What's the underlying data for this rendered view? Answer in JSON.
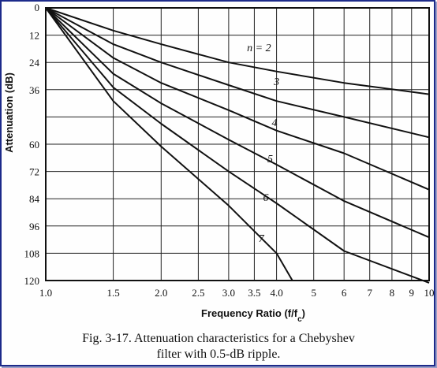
{
  "chart_data": {
    "type": "line",
    "xlabel": "Frequency Ratio (f/f",
    "xlabel_sub": "c",
    "xlabel_suffix": ")",
    "ylabel": "Attenuation (dB)",
    "x_scale": "log",
    "xlim": [
      1.0,
      10
    ],
    "ylim": [
      0,
      120
    ],
    "y_inverted": true,
    "grid": true,
    "x_ticks": [
      {
        "value": 1.0,
        "label": "1.0"
      },
      {
        "value": 1.5,
        "label": "1.5"
      },
      {
        "value": 2.0,
        "label": "2.0"
      },
      {
        "value": 2.5,
        "label": "2.5"
      },
      {
        "value": 3.0,
        "label": "3.0"
      },
      {
        "value": 3.5,
        "label": "3.5"
      },
      {
        "value": 4.0,
        "label": "4.0"
      },
      {
        "value": 5,
        "label": "5"
      },
      {
        "value": 6,
        "label": "6"
      },
      {
        "value": 7,
        "label": "7"
      },
      {
        "value": 8,
        "label": "8"
      },
      {
        "value": 9,
        "label": "9"
      },
      {
        "value": 10,
        "label": "10"
      }
    ],
    "y_ticks": [
      {
        "value": 0,
        "label": "0"
      },
      {
        "value": 12,
        "label": "12"
      },
      {
        "value": 24,
        "label": "24"
      },
      {
        "value": 36,
        "label": "36"
      },
      {
        "value": 60,
        "label": "60"
      },
      {
        "value": 72,
        "label": "72"
      },
      {
        "value": 84,
        "label": "84"
      },
      {
        "value": 96,
        "label": "96"
      },
      {
        "value": 108,
        "label": "108"
      },
      {
        "value": 120,
        "label": "120"
      }
    ],
    "y_gridlines": [
      0,
      12,
      24,
      36,
      48,
      60,
      72,
      84,
      96,
      108,
      120
    ],
    "series": [
      {
        "label": "n = 2",
        "x": [
          1.0,
          1.5,
          2.0,
          3.0,
          4.0,
          6.0,
          10
        ],
        "y": [
          0,
          10,
          16,
          24,
          28,
          33,
          38
        ],
        "label_at": [
          3.6,
          19
        ]
      },
      {
        "label": "3",
        "x": [
          1.0,
          1.5,
          2.0,
          3.0,
          4.0,
          6.0,
          10
        ],
        "y": [
          0,
          16,
          24,
          34,
          41,
          48,
          57
        ],
        "label_at": [
          4.0,
          34
        ]
      },
      {
        "label": "4",
        "x": [
          1.0,
          1.5,
          2.0,
          3.0,
          4.0,
          6.0,
          10
        ],
        "y": [
          0,
          22,
          33,
          45,
          54,
          64,
          80
        ],
        "label_at": [
          3.95,
          52
        ]
      },
      {
        "label": "5",
        "x": [
          1.0,
          1.5,
          2.0,
          3.0,
          4.0,
          6.0,
          10
        ],
        "y": [
          0,
          29,
          42,
          58,
          69,
          85,
          101
        ],
        "label_at": [
          3.85,
          68
        ]
      },
      {
        "label": "6",
        "x": [
          1.0,
          1.5,
          2.0,
          3.0,
          4.0,
          6.0,
          10
        ],
        "y": [
          0,
          35,
          51,
          72,
          86,
          107,
          121
        ],
        "label_at": [
          3.75,
          85
        ]
      },
      {
        "label": "7",
        "x": [
          1.0,
          1.5,
          2.0,
          3.0,
          4.0,
          4.4
        ],
        "y": [
          0,
          41,
          61,
          87,
          108,
          120
        ],
        "label_at": [
          3.65,
          103
        ]
      }
    ]
  },
  "caption": {
    "line1": "Fig. 3-17. Attenuation characteristics for a Chebyshev",
    "line2": "filter with 0.5-dB ripple."
  }
}
